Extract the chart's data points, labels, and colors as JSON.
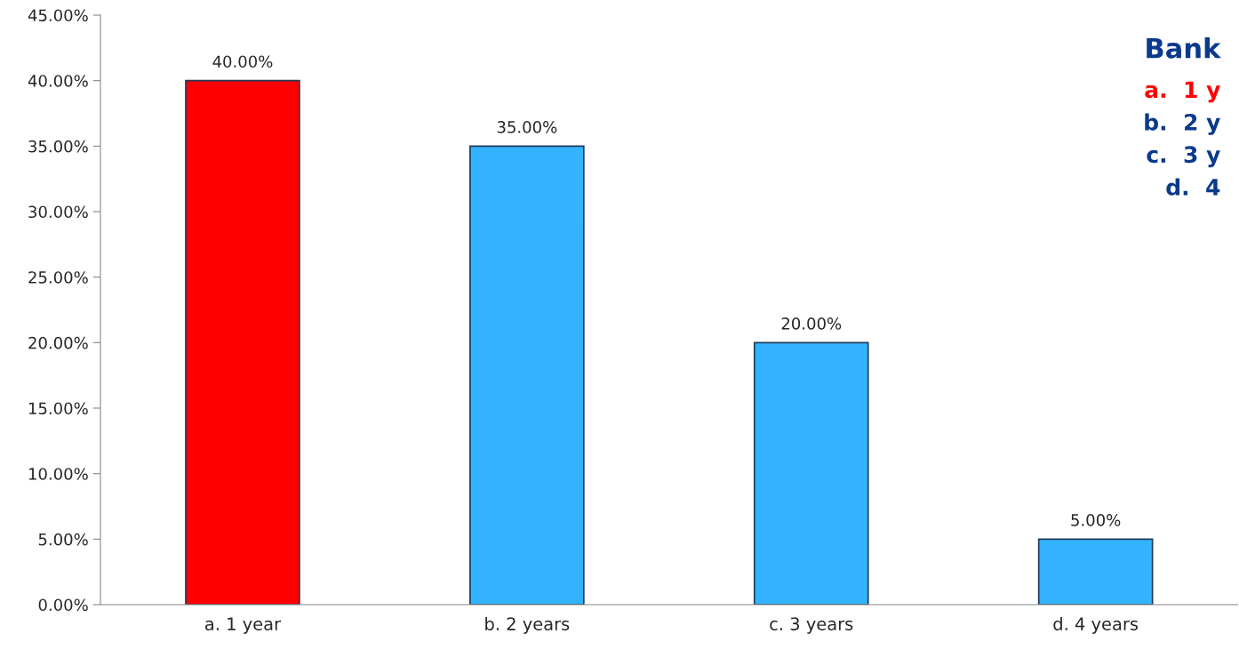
{
  "chart_data": {
    "type": "bar",
    "categories": [
      "a. 1 year",
      "b. 2 years",
      "c. 3 years",
      "d. 4 years"
    ],
    "values": [
      40,
      35,
      20,
      5
    ],
    "colors": [
      "#ff0000",
      "#33b3ff",
      "#33b3ff",
      "#33b3ff"
    ],
    "value_labels": [
      "40.00%",
      "35.00%",
      "20.00%",
      "5.00%"
    ],
    "ylim": [
      0,
      45
    ],
    "yticks": [
      {
        "value": 0,
        "label": "0.00%"
      },
      {
        "value": 5,
        "label": "5.00%"
      },
      {
        "value": 10,
        "label": "10.00%"
      },
      {
        "value": 15,
        "label": "15.00%"
      },
      {
        "value": 20,
        "label": "20.00%"
      },
      {
        "value": 25,
        "label": "25.00%"
      },
      {
        "value": 30,
        "label": "30.00%"
      },
      {
        "value": 35,
        "label": "35.00%"
      },
      {
        "value": 40,
        "label": "40.00%"
      },
      {
        "value": 45,
        "label": "45.00%"
      }
    ],
    "annotations": [
      "Bank",
      "a.  1 y",
      "b.  2 y",
      "c.  3 y",
      "d.  4"
    ],
    "grid": false
  }
}
